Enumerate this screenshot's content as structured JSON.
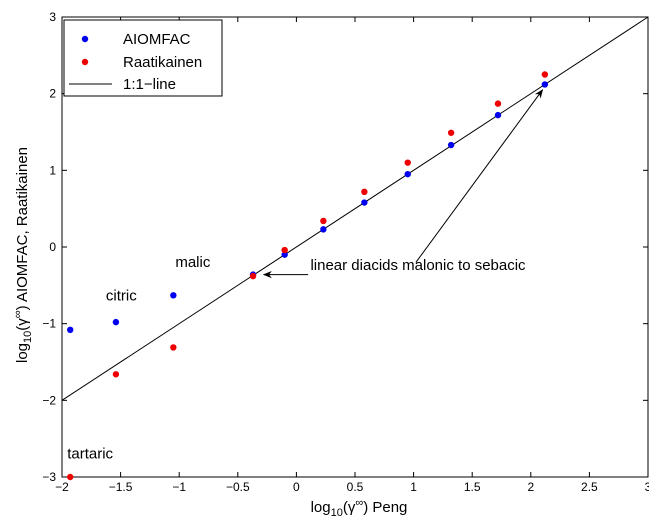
{
  "chart_data": {
    "type": "scatter",
    "xlabel": "log10(γ∞) Peng",
    "ylabel": "log10(γ∞) AIOMFAC, Raatikainen",
    "xlim": [
      -2,
      3
    ],
    "ylim": [
      -3,
      3
    ],
    "xticks": [
      "−2",
      "−1.5",
      "−1",
      "−0.5",
      "0",
      "0.5",
      "1",
      "1.5",
      "2",
      "2.5",
      "3"
    ],
    "yticks": [
      "−3",
      "−2",
      "−1",
      "0",
      "1",
      "2",
      "3"
    ],
    "xtick_values": [
      -2,
      -1.5,
      -1,
      -0.5,
      0,
      0.5,
      1,
      1.5,
      2,
      2.5,
      3
    ],
    "ytick_values": [
      -3,
      -2,
      -1,
      0,
      1,
      2,
      3
    ],
    "legend": {
      "placement": "top-left",
      "entries": [
        "AIOMFAC",
        "Raatikainen",
        "1:1−line"
      ]
    },
    "series": [
      {
        "name": "AIOMFAC",
        "color": "#0000ee",
        "x": [
          -1.93,
          -1.54,
          -1.05,
          -0.37,
          -0.1,
          0.23,
          0.58,
          0.95,
          1.32,
          1.72,
          2.12
        ],
        "y": [
          -1.08,
          -0.98,
          -0.63,
          -0.36,
          -0.1,
          0.23,
          0.58,
          0.95,
          1.33,
          1.72,
          2.12
        ]
      },
      {
        "name": "Raatikainen",
        "color": "#ee0000",
        "x": [
          -1.93,
          -1.54,
          -1.05,
          -0.37,
          -0.1,
          0.23,
          0.58,
          0.95,
          1.32,
          1.72,
          2.12
        ],
        "y": [
          -3.0,
          -1.66,
          -1.31,
          -0.38,
          -0.04,
          0.34,
          0.72,
          1.1,
          1.49,
          1.87,
          2.25
        ]
      },
      {
        "name": "1:1−line",
        "color": "#000000",
        "x": [
          -2,
          3
        ],
        "y": [
          -2,
          3
        ]
      }
    ],
    "annotations": [
      {
        "text": "malic",
        "x": -1.05,
        "y": -0.26
      },
      {
        "text": "citric",
        "x": -1.54,
        "y": -0.7
      },
      {
        "text": "tartaric",
        "x": -1.93,
        "y": -2.76
      },
      {
        "text": "linear diacids malonic to sebacic",
        "x": 0.12,
        "y": -0.3
      }
    ]
  }
}
